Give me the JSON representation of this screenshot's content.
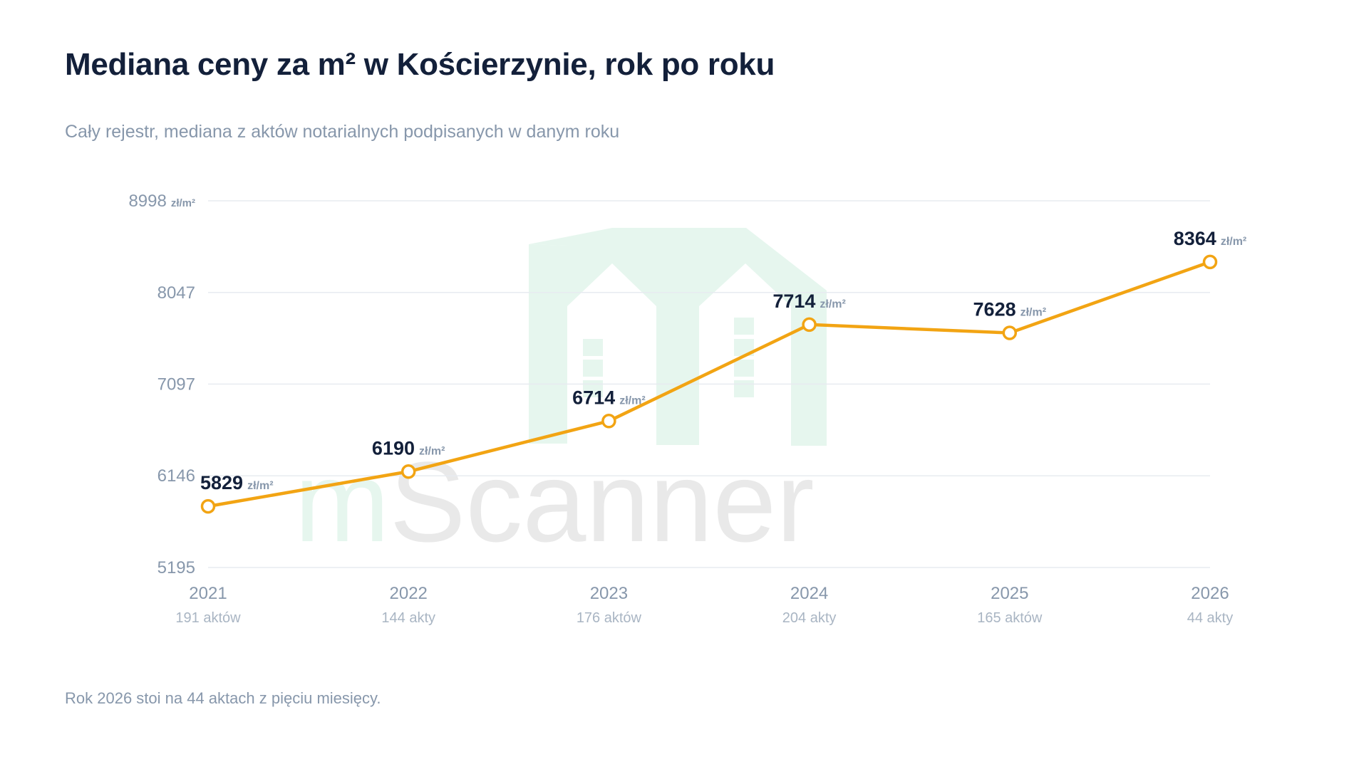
{
  "title": "Mediana ceny za m² w Kościerzynie, rok po roku",
  "subtitle": "Cały rejestr, mediana z aktów notarialnych podpisanych w danym roku",
  "footnote": "Rok 2026 stoi na 44 aktach z pięciu miesięcy.",
  "watermark": {
    "first": "m",
    "rest": "Scanner",
    "icon": "house-logo-icon"
  },
  "colors": {
    "line": "#f2a413",
    "grid": "#e7ebf0",
    "axis_text": "#8797ab",
    "label_text": "#13203a",
    "unit_text": "#8797ab",
    "watermark_green": "#e6f6ee",
    "watermark_gray": "#e9e9e9"
  },
  "chart_data": {
    "type": "line",
    "title": "Mediana ceny za m² w Kościerzynie, rok po roku",
    "xlabel": "",
    "ylabel": "",
    "unit": "zł/m²",
    "categories": [
      "2021",
      "2022",
      "2023",
      "2024",
      "2025",
      "2026"
    ],
    "sublabels": [
      "191 aktów",
      "144 akty",
      "176 aktów",
      "204 akty",
      "165 aktów",
      "44 akty"
    ],
    "values": [
      5829,
      6190,
      6714,
      7714,
      7628,
      8364
    ],
    "y_ticks": [
      {
        "value": 5195,
        "label": "5195"
      },
      {
        "value": 6146,
        "label": "6146"
      },
      {
        "value": 7097,
        "label": "7097"
      },
      {
        "value": 8047,
        "label": "8047"
      },
      {
        "value": 8998,
        "label": "8998"
      }
    ],
    "ylim": [
      5195,
      8998
    ],
    "grid": true,
    "legend": "none"
  }
}
